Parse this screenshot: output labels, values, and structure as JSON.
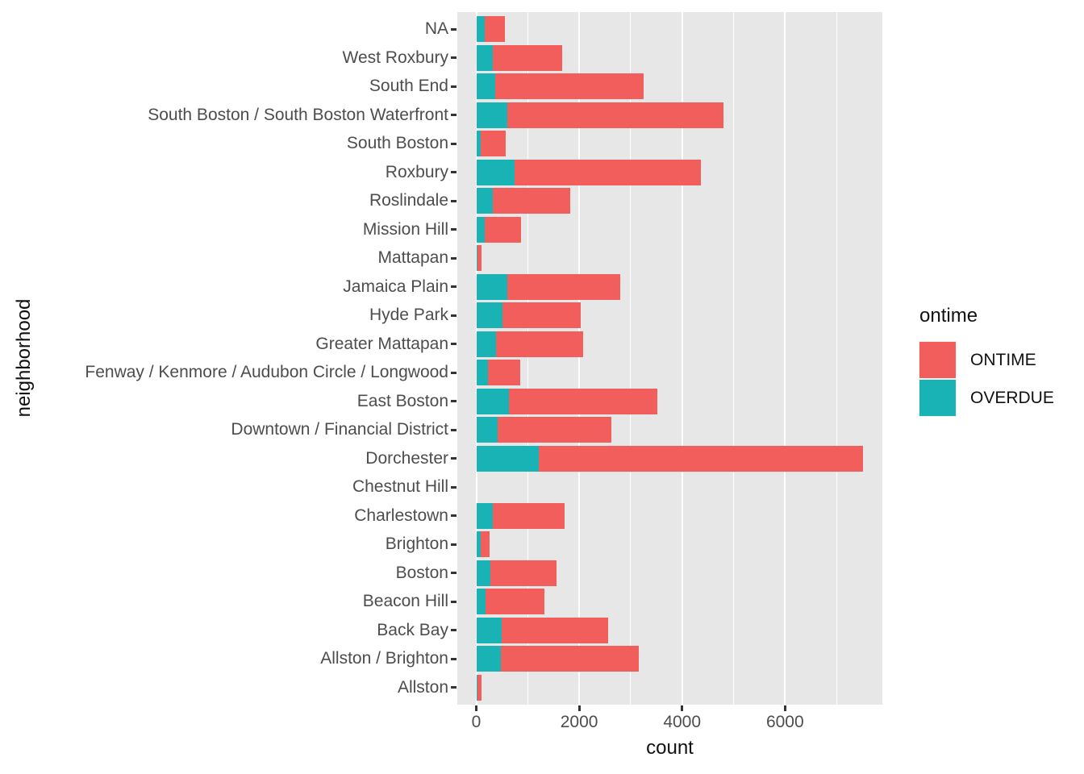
{
  "colors": {
    "ontime_red": "#F25E5B",
    "overdue_teal": "#1AB3B5",
    "panel_background": "#E7E7E7",
    "gridline": "#FFFFFF",
    "axis_text": "#4D4D4D",
    "axis_title": "#111111",
    "tick_mark": "#333333"
  },
  "chart_data": {
    "type": "bar",
    "orientation": "horizontal",
    "stacked": true,
    "title": "",
    "xlabel": "count",
    "ylabel": "neighborhood",
    "x_ticks": [
      0,
      2000,
      4000,
      6000
    ],
    "x_minor_gridlines": [
      1000,
      3000,
      5000,
      7000
    ],
    "xlim": [
      -380,
      7890
    ],
    "grid": true,
    "categories_top_to_bottom": [
      "NA",
      "West Roxbury",
      "South End",
      "South Boston / South Boston Waterfront",
      "South Boston",
      "Roxbury",
      "Roslindale",
      "Mission Hill",
      "Mattapan",
      "Jamaica Plain",
      "Hyde Park",
      "Greater Mattapan",
      "Fenway / Kenmore / Audubon Circle / Longwood",
      "East Boston",
      "Downtown / Financial District",
      "Dorchester",
      "Chestnut Hill",
      "Charlestown",
      "Brighton",
      "Boston",
      "Beacon Hill",
      "Back Bay",
      "Allston / Brighton",
      "Allston"
    ],
    "stack_order_left_to_right": [
      "OVERDUE",
      "ONTIME"
    ],
    "series": [
      {
        "name": "OVERDUE",
        "color": "#1AB3B5",
        "values": [
          160,
          320,
          370,
          600,
          80,
          740,
          320,
          165,
          20,
          605,
          510,
          380,
          220,
          635,
          420,
          1220,
          0,
          320,
          85,
          275,
          180,
          495,
          480,
          30
        ]
      },
      {
        "name": "ONTIME",
        "color": "#F25E5B",
        "values": [
          390,
          1350,
          2890,
          4200,
          490,
          3630,
          1500,
          705,
          80,
          2190,
          1520,
          1695,
          630,
          2880,
          2210,
          6290,
          0,
          1400,
          180,
          1280,
          1140,
          2060,
          2680,
          70
        ]
      }
    ],
    "legend": {
      "title": "ontime",
      "position": "right",
      "entries": [
        {
          "label": "ONTIME",
          "color": "#F25E5B"
        },
        {
          "label": "OVERDUE",
          "color": "#1AB3B5"
        }
      ]
    }
  }
}
